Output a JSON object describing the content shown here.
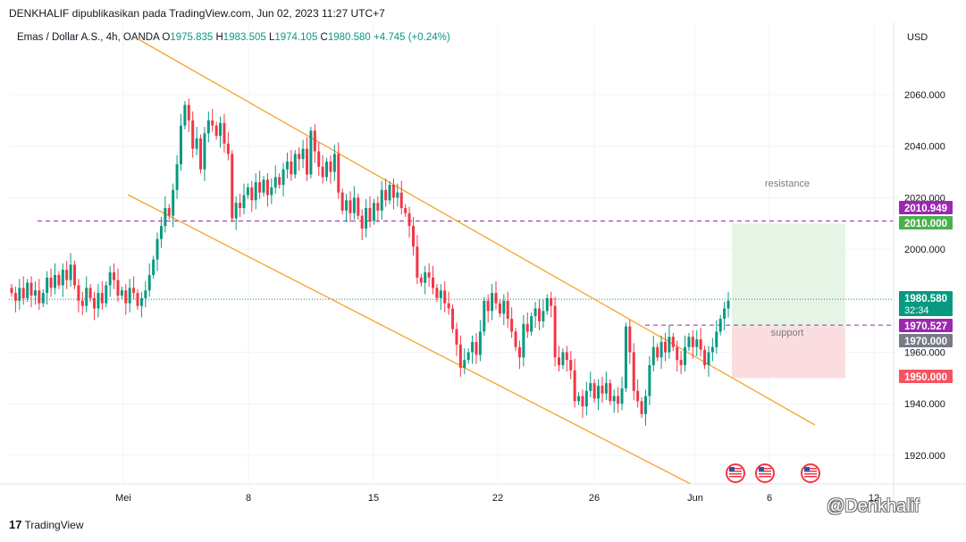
{
  "header": {
    "publish_line": "DENKHALIF dipublikasikan pada TradingView.com, Jun 02, 2023 11:27 UTC+7"
  },
  "legend": {
    "symbol": "Emas / Dollar A.S., 4h, OANDA",
    "open_label": "O",
    "open": "1975.835",
    "high_label": "H",
    "high": "1983.505",
    "low_label": "L",
    "low": "1974.105",
    "close_label": "C",
    "close": "1980.580",
    "change": "+4.745 (+0.24%)"
  },
  "currency": "USD",
  "footer": {
    "logo_mark": "17",
    "logo_text": "TradingView"
  },
  "watermark": "@Denkhalif",
  "colors": {
    "up": "#089981",
    "down": "#f23645",
    "channel": "#f7a42b",
    "level": "#9c27b0",
    "grid": "#f0f3fa",
    "target": "#e6f4e6",
    "stop": "#fbdddf"
  },
  "chart_data": {
    "type": "candlestick",
    "timeframe": "4h",
    "x_ticks": [
      "Mei",
      "8",
      "15",
      "22",
      "26",
      "Jun",
      "6",
      "12"
    ],
    "y_ticks": [
      "2060.000",
      "2040.000",
      "2020.000",
      "2000.000",
      "1960.000",
      "1940.000",
      "1920.000"
    ],
    "ylim": [
      1910,
      2070
    ],
    "price_tags": [
      {
        "label": "2010.949",
        "value": 2010.949,
        "color": "#9c27b0"
      },
      {
        "label": "2010.000",
        "value": 2010.0,
        "color": "#4caf50"
      },
      {
        "label": "1980.580",
        "value": 1980.58,
        "color": "#089981",
        "countdown": "32:34"
      },
      {
        "label": "1970.527",
        "value": 1970.527,
        "color": "#9c27b0"
      },
      {
        "label": "1970.000",
        "value": 1970.0,
        "color": "#787b86"
      },
      {
        "label": "1950.000",
        "value": 1950.0,
        "color": "#f7525f"
      }
    ],
    "annotations": [
      {
        "text": "resistance",
        "level": 2010.949
      },
      {
        "text": "support",
        "level": 1970.527
      }
    ],
    "trade_box": {
      "entry": 1970.0,
      "target": 2010.0,
      "stop": 1950.0
    },
    "events": 3,
    "closes": [
      1983,
      1980,
      1985,
      1981,
      1987,
      1982,
      1984,
      1979,
      1983,
      1989,
      1985,
      1990,
      1986,
      1992,
      1988,
      1994,
      1986,
      1980,
      1978,
      1985,
      1981,
      1977,
      1983,
      1979,
      1986,
      1991,
      1988,
      1982,
      1984,
      1979,
      1985,
      1983,
      1978,
      1981,
      1984,
      1990,
      1996,
      2004,
      2009,
      2016,
      2013,
      2023,
      2033,
      2048,
      2056,
      2050,
      2039,
      2043,
      2031,
      2045,
      2050,
      2048,
      2044,
      2049,
      2041,
      2037,
      2012,
      2018,
      2016,
      2021,
      2024,
      2019,
      2026,
      2022,
      2027,
      2021,
      2024,
      2028,
      2025,
      2031,
      2034,
      2029,
      2037,
      2035,
      2039,
      2029,
      2046,
      2038,
      2032,
      2028,
      2034,
      2030,
      2037,
      2022,
      2015,
      2019,
      2014,
      2020,
      2013,
      2008,
      2016,
      2011,
      2018,
      2015,
      2023,
      2019,
      2025,
      2020,
      2022,
      2016,
      2014,
      2009,
      2001,
      1989,
      1987,
      1991,
      1989,
      1985,
      1981,
      1984,
      1979,
      1977,
      1969,
      1963,
      1954,
      1957,
      1960,
      1964,
      1959,
      1968,
      1980,
      1976,
      1983,
      1979,
      1975,
      1980,
      1973,
      1968,
      1962,
      1958,
      1971,
      1968,
      1974,
      1977,
      1972,
      1976,
      1981,
      1978,
      1958,
      1955,
      1960,
      1957,
      1953,
      1941,
      1943,
      1939,
      1945,
      1948,
      1942,
      1947,
      1944,
      1948,
      1941,
      1943,
      1940,
      1946,
      1970,
      1960,
      1945,
      1941,
      1936,
      1943,
      1955,
      1962,
      1958,
      1964,
      1960,
      1966,
      1962,
      1957,
      1955,
      1962,
      1966,
      1962,
      1965,
      1961,
      1955,
      1960,
      1962,
      1968,
      1973,
      1977,
      1980
    ]
  }
}
